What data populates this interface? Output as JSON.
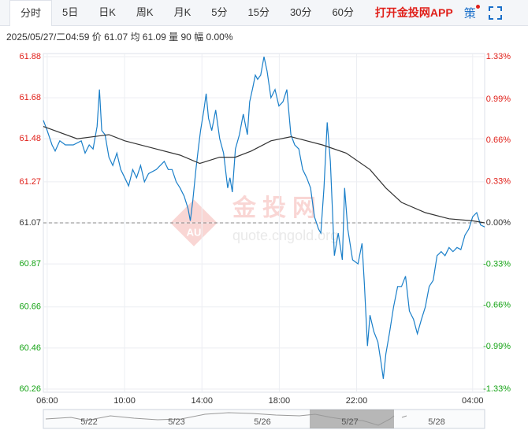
{
  "tabs": [
    "分时",
    "5日",
    "日K",
    "周K",
    "月K",
    "5分",
    "15分",
    "30分",
    "60分"
  ],
  "app_link": "打开金投网APP",
  "strategy": "策",
  "info": "2025/05/27/二04:59  价 61.07  均 61.09  量 90  幅 0.00%",
  "watermark": {
    "brand": "金投网",
    "url": "quote.cngold.org",
    "logo": "AU"
  },
  "navigator": [
    "5/22",
    "5/23",
    "5/26",
    "5/27",
    "5/28"
  ],
  "chart_data": {
    "type": "line",
    "xlim": [
      -0.2,
      22.62
    ],
    "xticks": [
      {
        "value": 0,
        "label": "06:00"
      },
      {
        "value": 4,
        "label": "10:00"
      },
      {
        "value": 8,
        "label": "14:00"
      },
      {
        "value": 12,
        "label": "18:00"
      },
      {
        "value": 16,
        "label": "22:00"
      },
      {
        "value": 22,
        "label": "04:00"
      }
    ],
    "ylim": [
      60.26,
      61.88
    ],
    "yticks": [
      61.88,
      61.68,
      61.48,
      61.27,
      61.07,
      60.87,
      60.66,
      60.46,
      60.26
    ],
    "y2lim": [
      -1.33,
      1.33
    ],
    "y2ticks": [
      {
        "value": 1.33,
        "label": "1.33%"
      },
      {
        "value": 0.99,
        "label": "0.99%"
      },
      {
        "value": 0.66,
        "label": "0.66%"
      },
      {
        "value": 0.33,
        "label": "0.33%"
      },
      {
        "value": 0,
        "label": "0.00%"
      },
      {
        "value": -0.33,
        "label": "-0.33%"
      },
      {
        "value": -0.66,
        "label": "-0.66%"
      },
      {
        "value": -0.99,
        "label": "-0.99%"
      },
      {
        "value": -1.33,
        "label": "-1.33%"
      }
    ],
    "baseline": 61.07,
    "up_color": "#e0201a",
    "down_color": "#16a316",
    "grid": true,
    "series": [
      {
        "name": "价",
        "color": "#1a7fc9",
        "x": [
          -0.2,
          0,
          0.25,
          0.41,
          0.65,
          0.94,
          1.35,
          1.76,
          1.96,
          2.17,
          2.37,
          2.58,
          2.7,
          2.82,
          2.99,
          3.19,
          3.39,
          3.6,
          3.8,
          4.01,
          4.21,
          4.42,
          4.62,
          4.83,
          5.03,
          5.24,
          5.64,
          6.05,
          6.26,
          6.46,
          6.67,
          6.87,
          7.08,
          7.28,
          7.4,
          7.53,
          7.69,
          7.81,
          7.93,
          8.1,
          8.22,
          8.34,
          8.51,
          8.71,
          8.92,
          9.12,
          9.33,
          9.45,
          9.57,
          9.73,
          9.94,
          10.14,
          10.35,
          10.47,
          10.63,
          10.76,
          10.88,
          11.04,
          11.21,
          11.37,
          11.57,
          11.78,
          11.98,
          12.19,
          12.39,
          12.6,
          12.8,
          13.01,
          13.21,
          13.42,
          13.62,
          13.82,
          14.03,
          14.15,
          14.31,
          14.48,
          14.64,
          14.85,
          15.05,
          15.26,
          15.38,
          15.54,
          15.79,
          16.07,
          16.28,
          16.4,
          16.56,
          16.69,
          16.89,
          17.1,
          17.26,
          17.38,
          17.51,
          17.71,
          17.91,
          18.12,
          18.32,
          18.53,
          18.73,
          18.94,
          19.14,
          19.35,
          19.55,
          19.75,
          19.96,
          20.16,
          20.37,
          20.57,
          20.78,
          20.98,
          21.19,
          21.39,
          21.6,
          21.8,
          22,
          22.21,
          22.41,
          22.62
        ],
        "values": [
          61.57,
          61.52,
          61.45,
          61.42,
          61.47,
          61.45,
          61.45,
          61.47,
          61.41,
          61.45,
          61.43,
          61.54,
          61.72,
          61.52,
          61.5,
          61.39,
          61.35,
          61.41,
          61.33,
          61.29,
          61.25,
          61.33,
          61.29,
          61.35,
          61.27,
          61.31,
          61.33,
          61.37,
          61.33,
          61.33,
          61.27,
          61.24,
          61.2,
          61.14,
          61.08,
          61.18,
          61.33,
          61.43,
          61.52,
          61.62,
          61.7,
          61.58,
          61.52,
          61.62,
          61.48,
          61.41,
          61.24,
          61.29,
          61.22,
          61.43,
          61.5,
          61.6,
          61.5,
          61.66,
          61.73,
          61.79,
          61.77,
          61.79,
          61.88,
          61.81,
          61.68,
          61.72,
          61.64,
          61.66,
          61.72,
          61.5,
          61.45,
          61.43,
          61.33,
          61.29,
          61.24,
          61.1,
          61.04,
          61.02,
          61.24,
          61.56,
          61.37,
          60.91,
          61.02,
          60.89,
          61.24,
          61.04,
          60.89,
          60.87,
          60.97,
          60.77,
          60.47,
          60.62,
          60.54,
          60.49,
          60.39,
          60.31,
          60.43,
          60.54,
          60.66,
          60.76,
          60.76,
          60.81,
          60.64,
          60.6,
          60.53,
          60.6,
          60.66,
          60.76,
          60.79,
          60.91,
          60.93,
          60.91,
          60.95,
          60.93,
          60.95,
          60.94,
          61.01,
          61.04,
          61.1,
          61.12,
          61.06,
          61.05
        ]
      },
      {
        "name": "均",
        "color": "#333333",
        "x": [
          -0.2,
          1.55,
          3.19,
          4.01,
          5.64,
          6.87,
          7.89,
          8.92,
          9.73,
          10.55,
          11.57,
          12.6,
          13.42,
          14.23,
          15.46,
          16.69,
          17.51,
          18.32,
          19.55,
          20.78,
          22,
          22.62
        ],
        "values": [
          61.54,
          61.48,
          61.5,
          61.47,
          61.43,
          61.4,
          61.36,
          61.39,
          61.39,
          61.42,
          61.47,
          61.49,
          61.47,
          61.45,
          61.41,
          61.33,
          61.24,
          61.17,
          61.12,
          61.09,
          61.08,
          61.07
        ]
      }
    ]
  }
}
